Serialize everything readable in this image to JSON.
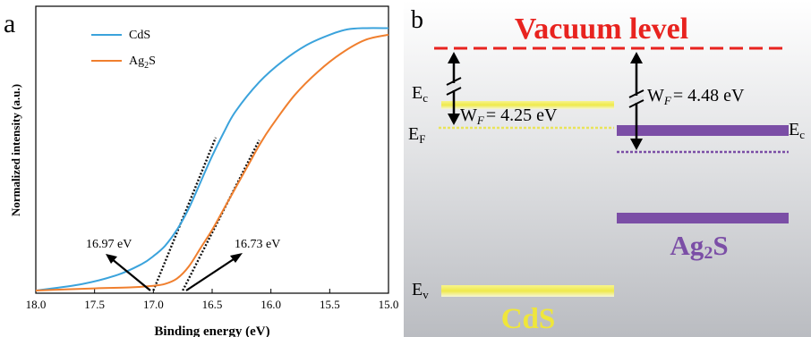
{
  "chart_data": [
    {
      "type": "line",
      "panel_label": "a",
      "xlabel": "Binding energy (eV)",
      "ylabel": "Normalized intensity (a.u.)",
      "xlim": [
        18.0,
        15.0
      ],
      "x_reversed": true,
      "x_ticks": [
        "18.0",
        "17.5",
        "17.0",
        "16.5",
        "16.0",
        "15.5",
        "15.0"
      ],
      "grid": false,
      "legend_position": "top-left",
      "legend_entries": [
        {
          "label": "CdS",
          "color": "#3ba3dc"
        },
        {
          "label": "Ag",
          "sub": "2",
          "tail": "S",
          "color": "#f07f2e"
        }
      ],
      "series": [
        {
          "name": "CdS",
          "color": "#3ba3dc",
          "x": [
            18.0,
            17.6,
            17.3,
            17.1,
            17.0,
            16.9,
            16.8,
            16.7,
            16.6,
            16.5,
            16.4,
            16.3,
            16.1,
            15.9,
            15.7,
            15.5,
            15.35,
            15.2,
            15.0
          ],
          "y": [
            0.0,
            0.025,
            0.06,
            0.1,
            0.13,
            0.17,
            0.23,
            0.31,
            0.41,
            0.51,
            0.6,
            0.68,
            0.79,
            0.87,
            0.93,
            0.97,
            0.99,
            0.995,
            0.995
          ]
        },
        {
          "name": "Ag2S",
          "color": "#f07f2e",
          "x": [
            18.0,
            17.5,
            17.2,
            17.0,
            16.9,
            16.8,
            16.7,
            16.6,
            16.5,
            16.4,
            16.3,
            16.2,
            16.1,
            16.0,
            15.8,
            15.6,
            15.4,
            15.2,
            15.0
          ],
          "y": [
            0.0,
            0.008,
            0.012,
            0.018,
            0.025,
            0.045,
            0.09,
            0.16,
            0.23,
            0.31,
            0.39,
            0.47,
            0.55,
            0.62,
            0.74,
            0.83,
            0.9,
            0.95,
            0.97
          ]
        }
      ],
      "tangent_lines": [
        {
          "x": [
            17.0,
            16.47
          ],
          "y": [
            0.0,
            0.58
          ]
        },
        {
          "x": [
            16.75,
            16.1
          ],
          "y": [
            0.0,
            0.57
          ]
        }
      ],
      "annotations": [
        {
          "text": "16.97 eV",
          "arrow_to_x": 16.97
        },
        {
          "text": "16.73 eV",
          "arrow_to_x": 16.73
        }
      ]
    },
    {
      "type": "diagram",
      "panel_label": "b",
      "vacuum_label": "Vacuum level",
      "left_material": "CdS",
      "right_material": {
        "main": "Ag",
        "sub": "2",
        "tail": "S"
      },
      "left_work_function": "W",
      "left_wf_sub": "F",
      "left_wf_value": "= 4.25 eV",
      "right_work_function": "W",
      "right_wf_sub": "F",
      "right_wf_value": "= 4.48 eV",
      "level_labels": {
        "ec": "E",
        "ec_sub": "c",
        "ef": "E",
        "ef_sub": "F",
        "ev": "E",
        "ev_sub": "v",
        "ec_right": "E",
        "ec_right_sub": "c"
      },
      "colors": {
        "vacuum": "#e8231f",
        "cds_band": "#f2ee5a",
        "ag2s_band": "#7b4ea6",
        "text_cds": "#efe63b",
        "text_ag2s": "#7b4ea6"
      }
    }
  ]
}
